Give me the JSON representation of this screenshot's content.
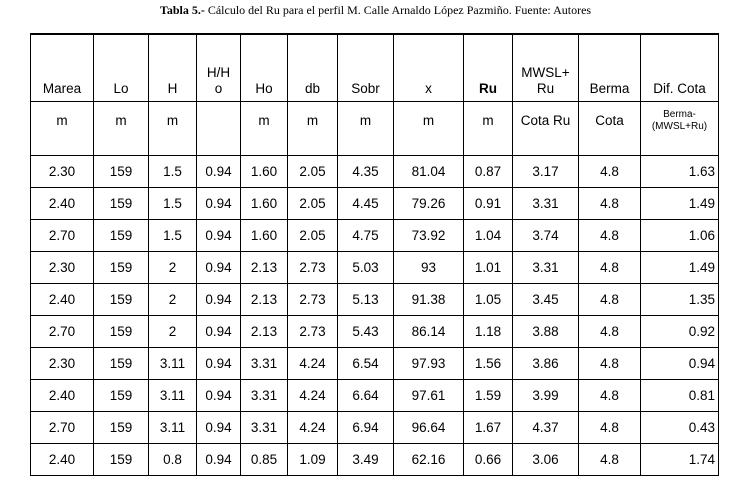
{
  "caption": {
    "label": "Tabla 5.-",
    "text": "Cálculo del Ru para el perfil M. Calle Arnaldo López Pazmiño. Fuente: Autores"
  },
  "table": {
    "headers": [
      "Marea",
      "Lo",
      "H",
      "H/H\no",
      "Ho",
      "db",
      "Sobr",
      "x",
      "Ru",
      "MWSL+\nRu",
      "Berma",
      "Dif. Cota"
    ],
    "units": [
      "m",
      "m",
      "m",
      null,
      "m",
      "m",
      "m",
      "m",
      "m",
      "Cota Ru",
      "Cota",
      "Berma-\n(MWSL+Ru)"
    ],
    "rows": [
      [
        "2.30",
        "159",
        "1.5",
        "0.94",
        "1.60",
        "2.05",
        "4.35",
        "81.04",
        "0.87",
        "3.17",
        "4.8",
        "1.63"
      ],
      [
        "2.40",
        "159",
        "1.5",
        "0.94",
        "1.60",
        "2.05",
        "4.45",
        "79.26",
        "0.91",
        "3.31",
        "4.8",
        "1.49"
      ],
      [
        "2.70",
        "159",
        "1.5",
        "0.94",
        "1.60",
        "2.05",
        "4.75",
        "73.92",
        "1.04",
        "3.74",
        "4.8",
        "1.06"
      ],
      [
        "2.30",
        "159",
        "2",
        "0.94",
        "2.13",
        "2.73",
        "5.03",
        "93",
        "1.01",
        "3.31",
        "4.8",
        "1.49"
      ],
      [
        "2.40",
        "159",
        "2",
        "0.94",
        "2.13",
        "2.73",
        "5.13",
        "91.38",
        "1.05",
        "3.45",
        "4.8",
        "1.35"
      ],
      [
        "2.70",
        "159",
        "2",
        "0.94",
        "2.13",
        "2.73",
        "5.43",
        "86.14",
        "1.18",
        "3.88",
        "4.8",
        "0.92"
      ],
      [
        "2.30",
        "159",
        "3.11",
        "0.94",
        "3.31",
        "4.24",
        "6.54",
        "97.93",
        "1.56",
        "3.86",
        "4.8",
        "0.94"
      ],
      [
        "2.40",
        "159",
        "3.11",
        "0.94",
        "3.31",
        "4.24",
        "6.64",
        "97.61",
        "1.59",
        "3.99",
        "4.8",
        "0.81"
      ],
      [
        "2.70",
        "159",
        "3.11",
        "0.94",
        "3.31",
        "4.24",
        "6.94",
        "96.64",
        "1.67",
        "4.37",
        "4.8",
        "0.43"
      ],
      [
        "2.40",
        "159",
        "0.8",
        "0.94",
        "0.85",
        "1.09",
        "3.49",
        "62.16",
        "0.66",
        "3.06",
        "4.8",
        "1.74"
      ]
    ]
  }
}
